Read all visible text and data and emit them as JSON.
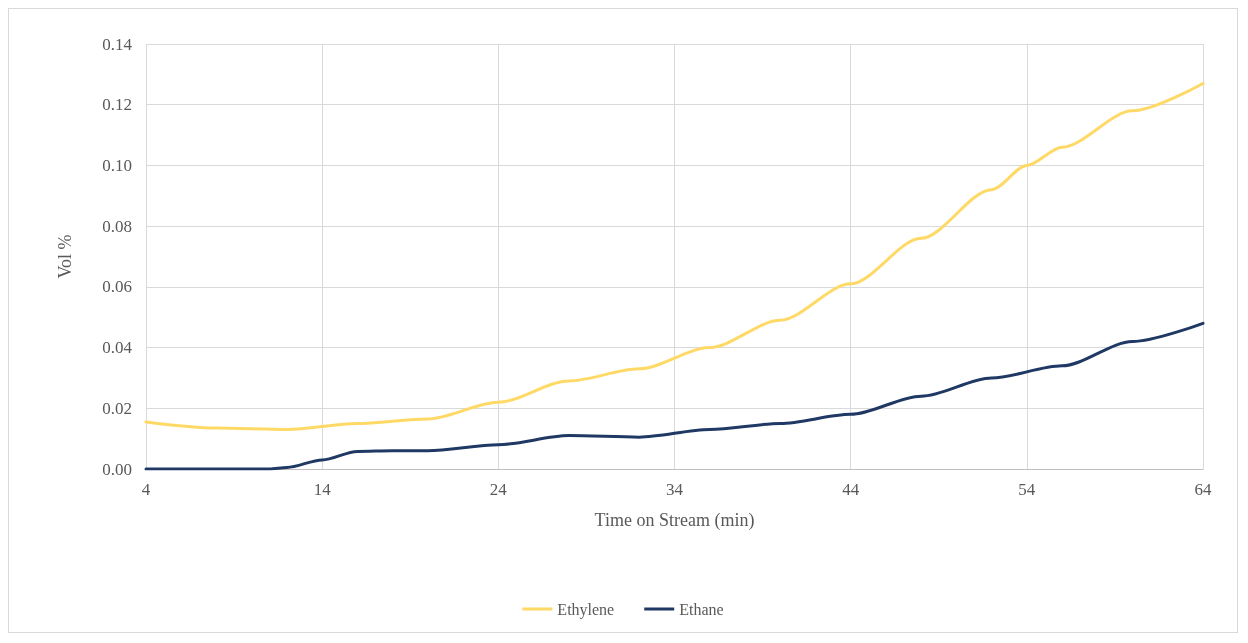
{
  "chart_data": {
    "type": "line",
    "xlabel": "Time on Stream (min)",
    "ylabel": "Vol %",
    "xlim": [
      4,
      64
    ],
    "xticks": [
      4,
      14,
      24,
      34,
      44,
      54,
      64
    ],
    "ylim": [
      0,
      0.14
    ],
    "yticks": [
      {
        "value": 0,
        "label": "0.00"
      },
      {
        "value": 0.02,
        "label": "0.02"
      },
      {
        "value": 0.04,
        "label": "0.04"
      },
      {
        "value": 0.06,
        "label": "0.06"
      },
      {
        "value": 0.08,
        "label": "0.08"
      },
      {
        "value": 0.1,
        "label": "0.10"
      },
      {
        "value": 0.12,
        "label": "0.12"
      },
      {
        "value": 0.14,
        "label": "0.14"
      }
    ],
    "grid": true,
    "legend": "bottom",
    "marker": "none",
    "line_style": "solid",
    "series": [
      {
        "name": "Ethylene",
        "color": "#ffd966",
        "x": [
          4,
          8,
          12,
          16,
          20,
          24,
          28,
          32,
          36,
          40,
          44,
          48,
          52,
          54,
          56,
          60,
          64
        ],
        "values": [
          0.0155,
          0.0135,
          0.013,
          0.015,
          0.0165,
          0.022,
          0.029,
          0.033,
          0.04,
          0.049,
          0.061,
          0.076,
          0.092,
          0.1,
          0.106,
          0.118,
          0.127
        ]
      },
      {
        "name": "Ethane",
        "color": "#203864",
        "x": [
          4,
          8,
          11,
          12,
          14,
          16,
          18,
          20,
          24,
          28,
          32,
          36,
          40,
          44,
          48,
          52,
          56,
          60,
          64
        ],
        "values": [
          0,
          0,
          0,
          0.0005,
          0.003,
          0.0058,
          0.006,
          0.006,
          0.008,
          0.011,
          0.0105,
          0.013,
          0.015,
          0.018,
          0.024,
          0.03,
          0.034,
          0.042,
          0.048
        ]
      }
    ]
  }
}
